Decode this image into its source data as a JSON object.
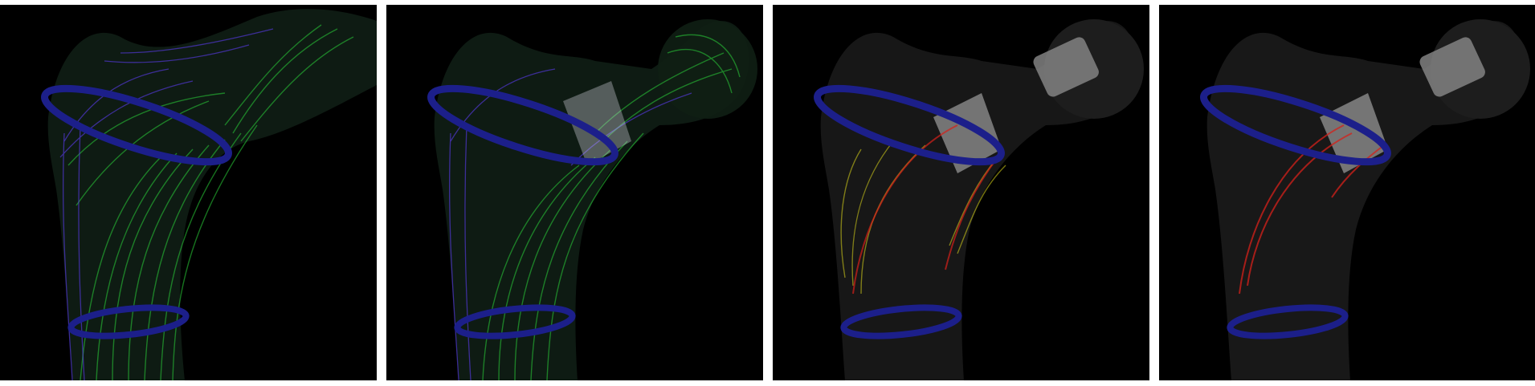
{
  "panels": [
    {
      "id": "panel-1",
      "variant": "fiber-full",
      "colors": {
        "primary": "#2bd13a",
        "secondary": "#5b3cf0",
        "ring": "#1c1f8a"
      }
    },
    {
      "id": "panel-2",
      "variant": "fiber-implant",
      "colors": {
        "primary": "#2bd13a",
        "secondary": "#5b3cf0",
        "ring": "#1c1f8a",
        "implant": "#d9d9e6"
      }
    },
    {
      "id": "panel-3",
      "variant": "stress-yellow-red",
      "colors": {
        "primary": "#d8d31a",
        "secondary": "#d6201a",
        "ring": "#1c1f8a",
        "implant": "#e6e6e6"
      }
    },
    {
      "id": "panel-4",
      "variant": "stress-red",
      "colors": {
        "primary": "#d6201a",
        "ring": "#1c1f8a",
        "implant": "#e6e6e6"
      }
    }
  ]
}
